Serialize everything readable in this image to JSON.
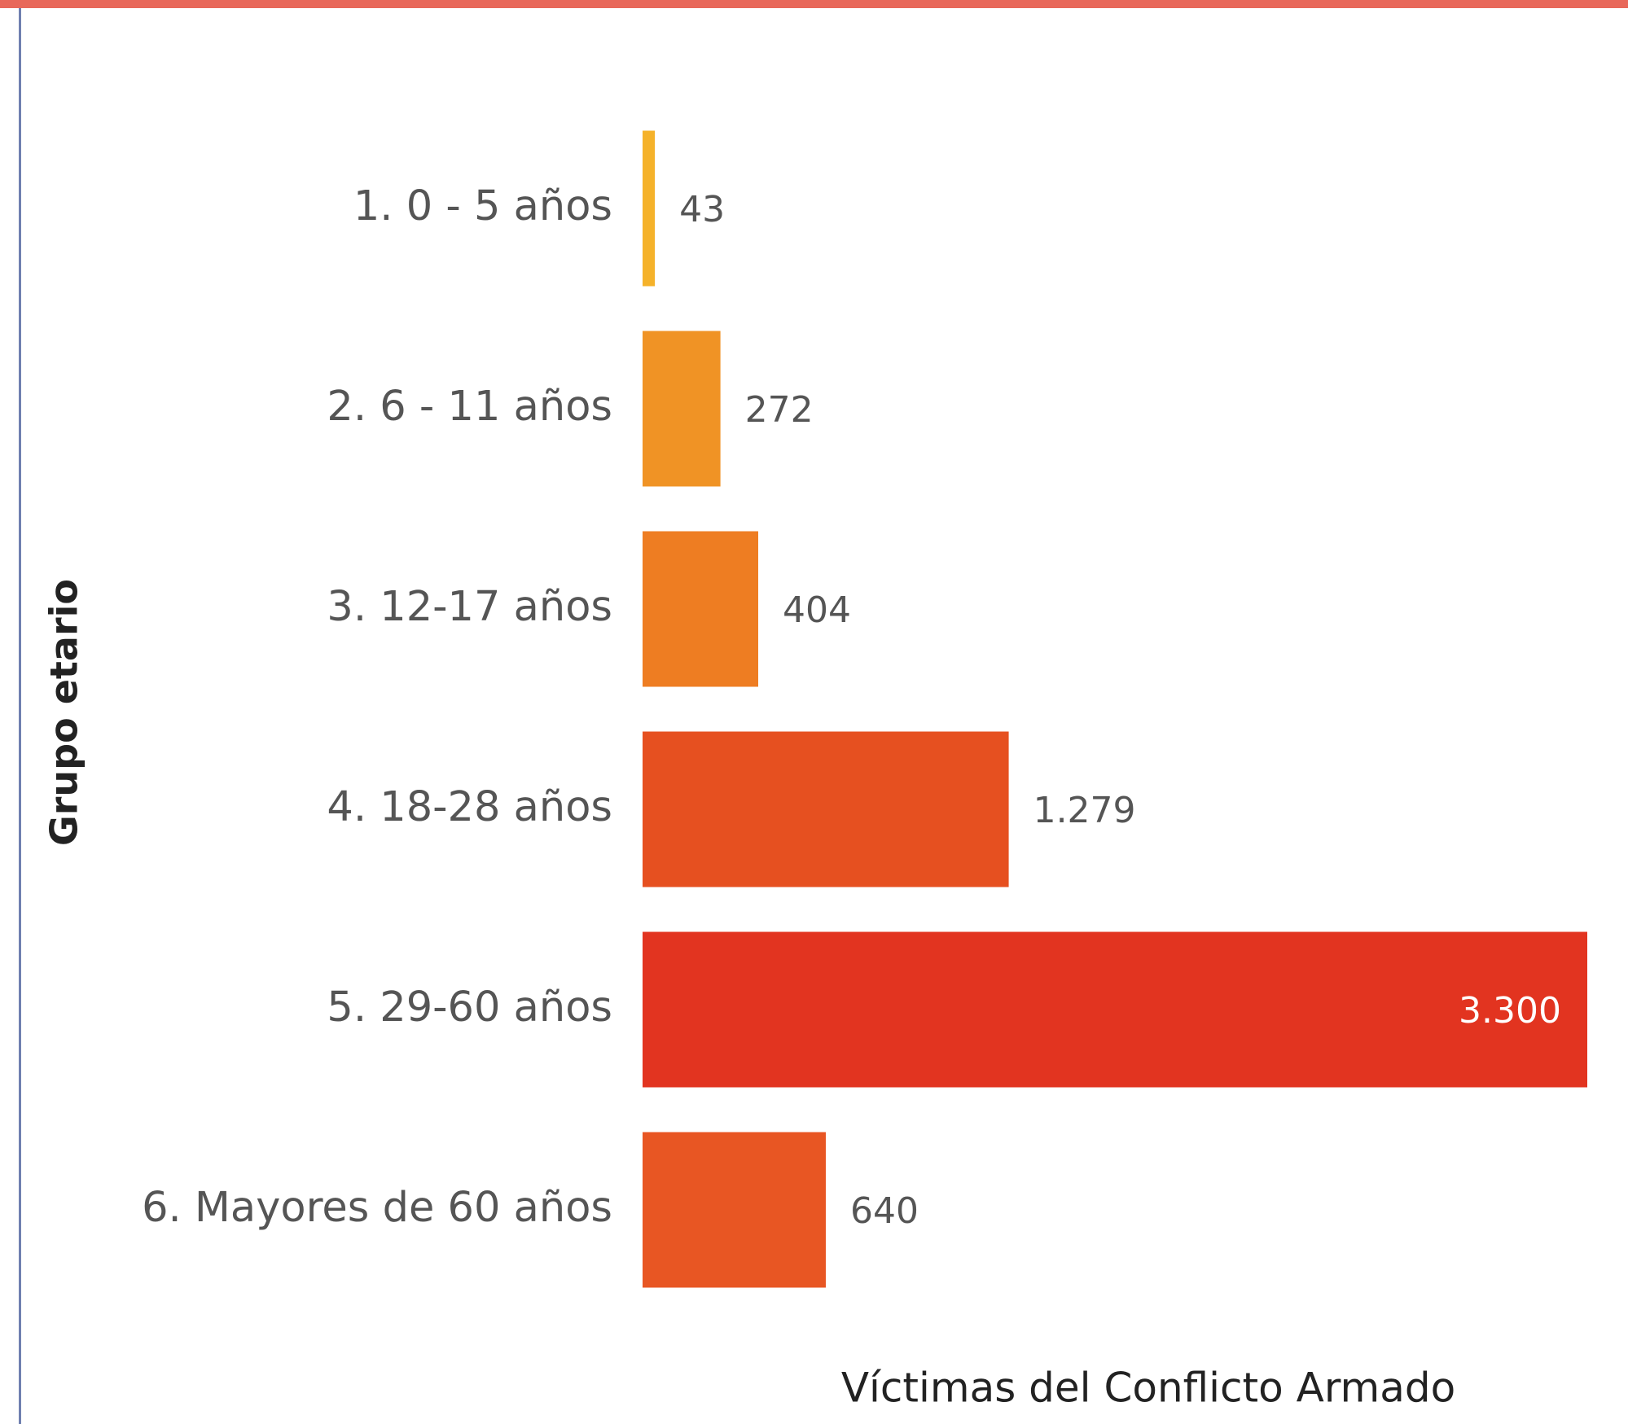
{
  "chart_data": {
    "type": "hbar",
    "categories": [
      "1. 0 - 5 años",
      "2. 6 - 11 años",
      "3. 12-17 años",
      "4. 18-28 años",
      "5. 29-60 años",
      "6. Mayores de 60 años"
    ],
    "values": [
      43,
      272,
      404,
      1279,
      3300,
      640
    ],
    "value_labels": [
      "43",
      "272",
      "404",
      "1.279",
      "3.300",
      "640"
    ],
    "colors": [
      "#f5b22a",
      "#f09325",
      "#ee7d22",
      "#e65020",
      "#e23420",
      "#e85623"
    ],
    "xlabel": "Víctimas del Conflicto Armado",
    "ylabel": "Grupo etario"
  }
}
